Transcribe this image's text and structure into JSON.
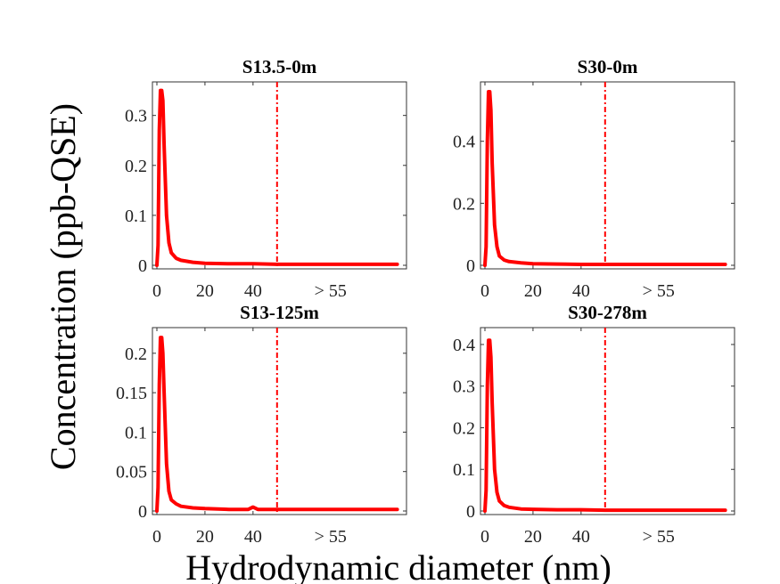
{
  "figure": {
    "ylabel": "Concentration (ppb-QSE)",
    "xlabel": "Hydrodynamic diameter (nm)"
  },
  "chart_data": [
    {
      "type": "line",
      "title": "S13.5-0m",
      "color": "#ff0000",
      "cutoff": 50,
      "xlim": [
        0,
        102
      ],
      "ylim": [
        0,
        0.36
      ],
      "x_ticks": [
        0,
        20,
        40
      ],
      "x_tick_labels": [
        "0",
        "20",
        "40"
      ],
      "x_extra_label": "> 55",
      "y_ticks": [
        0,
        0.1,
        0.2,
        0.3
      ],
      "y_tick_labels": [
        "0",
        "0.1",
        "0.2",
        "0.3"
      ],
      "x": [
        0,
        0.5,
        1,
        1.5,
        2,
        2.5,
        3,
        4,
        5,
        6,
        8,
        10,
        15,
        20,
        30,
        40,
        50,
        60,
        80,
        100
      ],
      "y": [
        0,
        0.04,
        0.27,
        0.35,
        0.35,
        0.33,
        0.24,
        0.1,
        0.045,
        0.025,
        0.014,
        0.01,
        0.006,
        0.004,
        0.003,
        0.003,
        0.002,
        0.002,
        0.002,
        0.002
      ]
    },
    {
      "type": "line",
      "title": "S30-0m",
      "color": "#ff0000",
      "cutoff": 50,
      "xlim": [
        0,
        102
      ],
      "ylim": [
        0,
        0.58
      ],
      "x_ticks": [
        0,
        20,
        40
      ],
      "x_tick_labels": [
        "0",
        "20",
        "40"
      ],
      "x_extra_label": "> 55",
      "y_ticks": [
        0,
        0.2,
        0.4
      ],
      "y_tick_labels": [
        "0",
        "0.2",
        "0.4"
      ],
      "x": [
        0,
        0.5,
        1,
        1.5,
        2,
        2.5,
        3,
        4,
        5,
        6,
        8,
        10,
        15,
        20,
        30,
        40,
        50,
        60,
        80,
        100
      ],
      "y": [
        0,
        0.06,
        0.4,
        0.56,
        0.56,
        0.5,
        0.33,
        0.13,
        0.06,
        0.03,
        0.017,
        0.012,
        0.008,
        0.005,
        0.004,
        0.003,
        0.003,
        0.003,
        0.003,
        0.003
      ]
    },
    {
      "type": "line",
      "title": "S13-125m",
      "color": "#ff0000",
      "cutoff": 50,
      "xlim": [
        0,
        102
      ],
      "ylim": [
        0,
        0.228
      ],
      "x_ticks": [
        0,
        20,
        40
      ],
      "x_tick_labels": [
        "0",
        "20",
        "40"
      ],
      "x_extra_label": "> 55",
      "y_ticks": [
        0,
        0.05,
        0.1,
        0.15,
        0.2
      ],
      "y_tick_labels": [
        "0",
        "0.05",
        "0.1",
        "0.15",
        "0.2"
      ],
      "x": [
        0,
        0.5,
        1,
        1.5,
        2,
        2.5,
        3,
        4,
        5,
        6,
        8,
        10,
        15,
        20,
        30,
        38,
        40,
        42,
        50,
        60,
        80,
        100
      ],
      "y": [
        0,
        0.03,
        0.16,
        0.22,
        0.22,
        0.2,
        0.15,
        0.06,
        0.025,
        0.014,
        0.009,
        0.006,
        0.004,
        0.003,
        0.002,
        0.002,
        0.005,
        0.002,
        0.002,
        0.002,
        0.002,
        0.002
      ]
    },
    {
      "type": "line",
      "title": "S30-278m",
      "color": "#ff0000",
      "cutoff": 50,
      "xlim": [
        0,
        102
      ],
      "ylim": [
        0,
        0.432
      ],
      "x_ticks": [
        0,
        20,
        40
      ],
      "x_tick_labels": [
        "0",
        "20",
        "40"
      ],
      "x_extra_label": "> 55",
      "y_ticks": [
        0,
        0.1,
        0.2,
        0.3,
        0.4
      ],
      "y_tick_labels": [
        "0",
        "0.1",
        "0.2",
        "0.3",
        "0.4"
      ],
      "x": [
        0,
        0.5,
        1,
        1.5,
        2,
        2.5,
        3,
        4,
        5,
        6,
        8,
        10,
        15,
        20,
        30,
        40,
        50,
        60,
        80,
        100
      ],
      "y": [
        0,
        0.05,
        0.3,
        0.41,
        0.41,
        0.37,
        0.26,
        0.1,
        0.045,
        0.024,
        0.013,
        0.009,
        0.005,
        0.004,
        0.003,
        0.003,
        0.002,
        0.002,
        0.002,
        0.002
      ]
    }
  ]
}
